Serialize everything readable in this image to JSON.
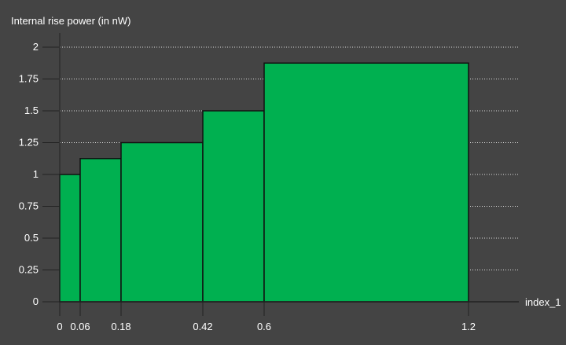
{
  "chart_data": {
    "type": "bar",
    "style": "step-histogram",
    "ylabel": "Internal rise power (in nW)",
    "xlabel": "index_1",
    "x_ticks": [
      "0",
      "0.06",
      "0.18",
      "0.42",
      "0.6",
      "1.2"
    ],
    "y_ticks": [
      "0",
      "0.25",
      "0.5",
      "0.75",
      "1",
      "1.25",
      "1.5",
      "1.75",
      "2"
    ],
    "xlim": [
      0,
      1.2
    ],
    "ylim": [
      0,
      2
    ],
    "grid": "horizontal-dotted",
    "bins": [
      {
        "x0": 0,
        "x1": 0.06,
        "value": 1.0
      },
      {
        "x0": 0.06,
        "x1": 0.18,
        "value": 1.125
      },
      {
        "x0": 0.18,
        "x1": 0.42,
        "value": 1.25
      },
      {
        "x0": 0.42,
        "x1": 0.6,
        "value": 1.5
      },
      {
        "x0": 0.6,
        "x1": 1.2,
        "value": 1.875
      }
    ],
    "colors": {
      "background": "#444444",
      "bar_fill": "#00b050",
      "bar_stroke": "#111111",
      "grid": "#dddddd",
      "axis": "#222222",
      "text": "#ffffff"
    }
  }
}
